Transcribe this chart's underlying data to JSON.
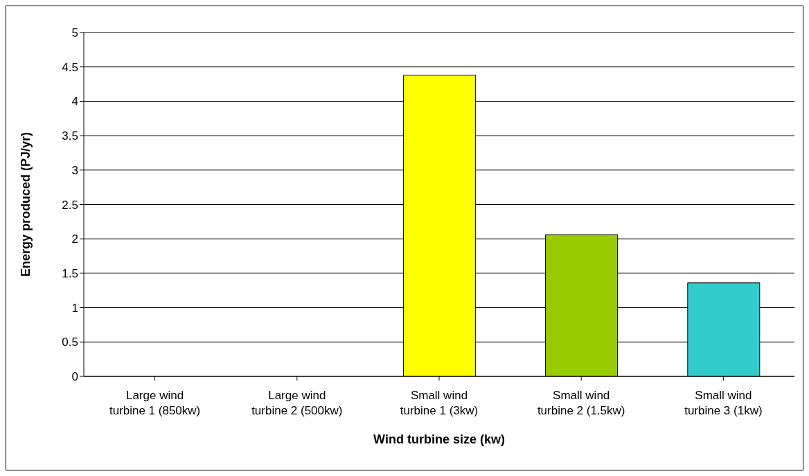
{
  "chart_data": {
    "type": "bar",
    "xlabel": "Wind turbine size (kw)",
    "ylabel": "Energy produced (PJ/yr)",
    "categories": [
      "Large wind turbine 1 (850kw)",
      "Large wind turbine 2 (500kw)",
      "Small wind turbine 1 (3kw)",
      "Small wind turbine 2 (1.5kw)",
      "Small wind turbine 3 (1kw)"
    ],
    "values": [
      0,
      0,
      4.38,
      2.06,
      1.36
    ],
    "colors": [
      "#9999ff",
      "#993366",
      "#ffff00",
      "#99cc00",
      "#33cccc"
    ],
    "ylim": [
      0,
      5
    ],
    "yticks": [
      0,
      0.5,
      1,
      1.5,
      2,
      2.5,
      3,
      3.5,
      4,
      4.5,
      5
    ],
    "grid": "y",
    "legend": false
  }
}
